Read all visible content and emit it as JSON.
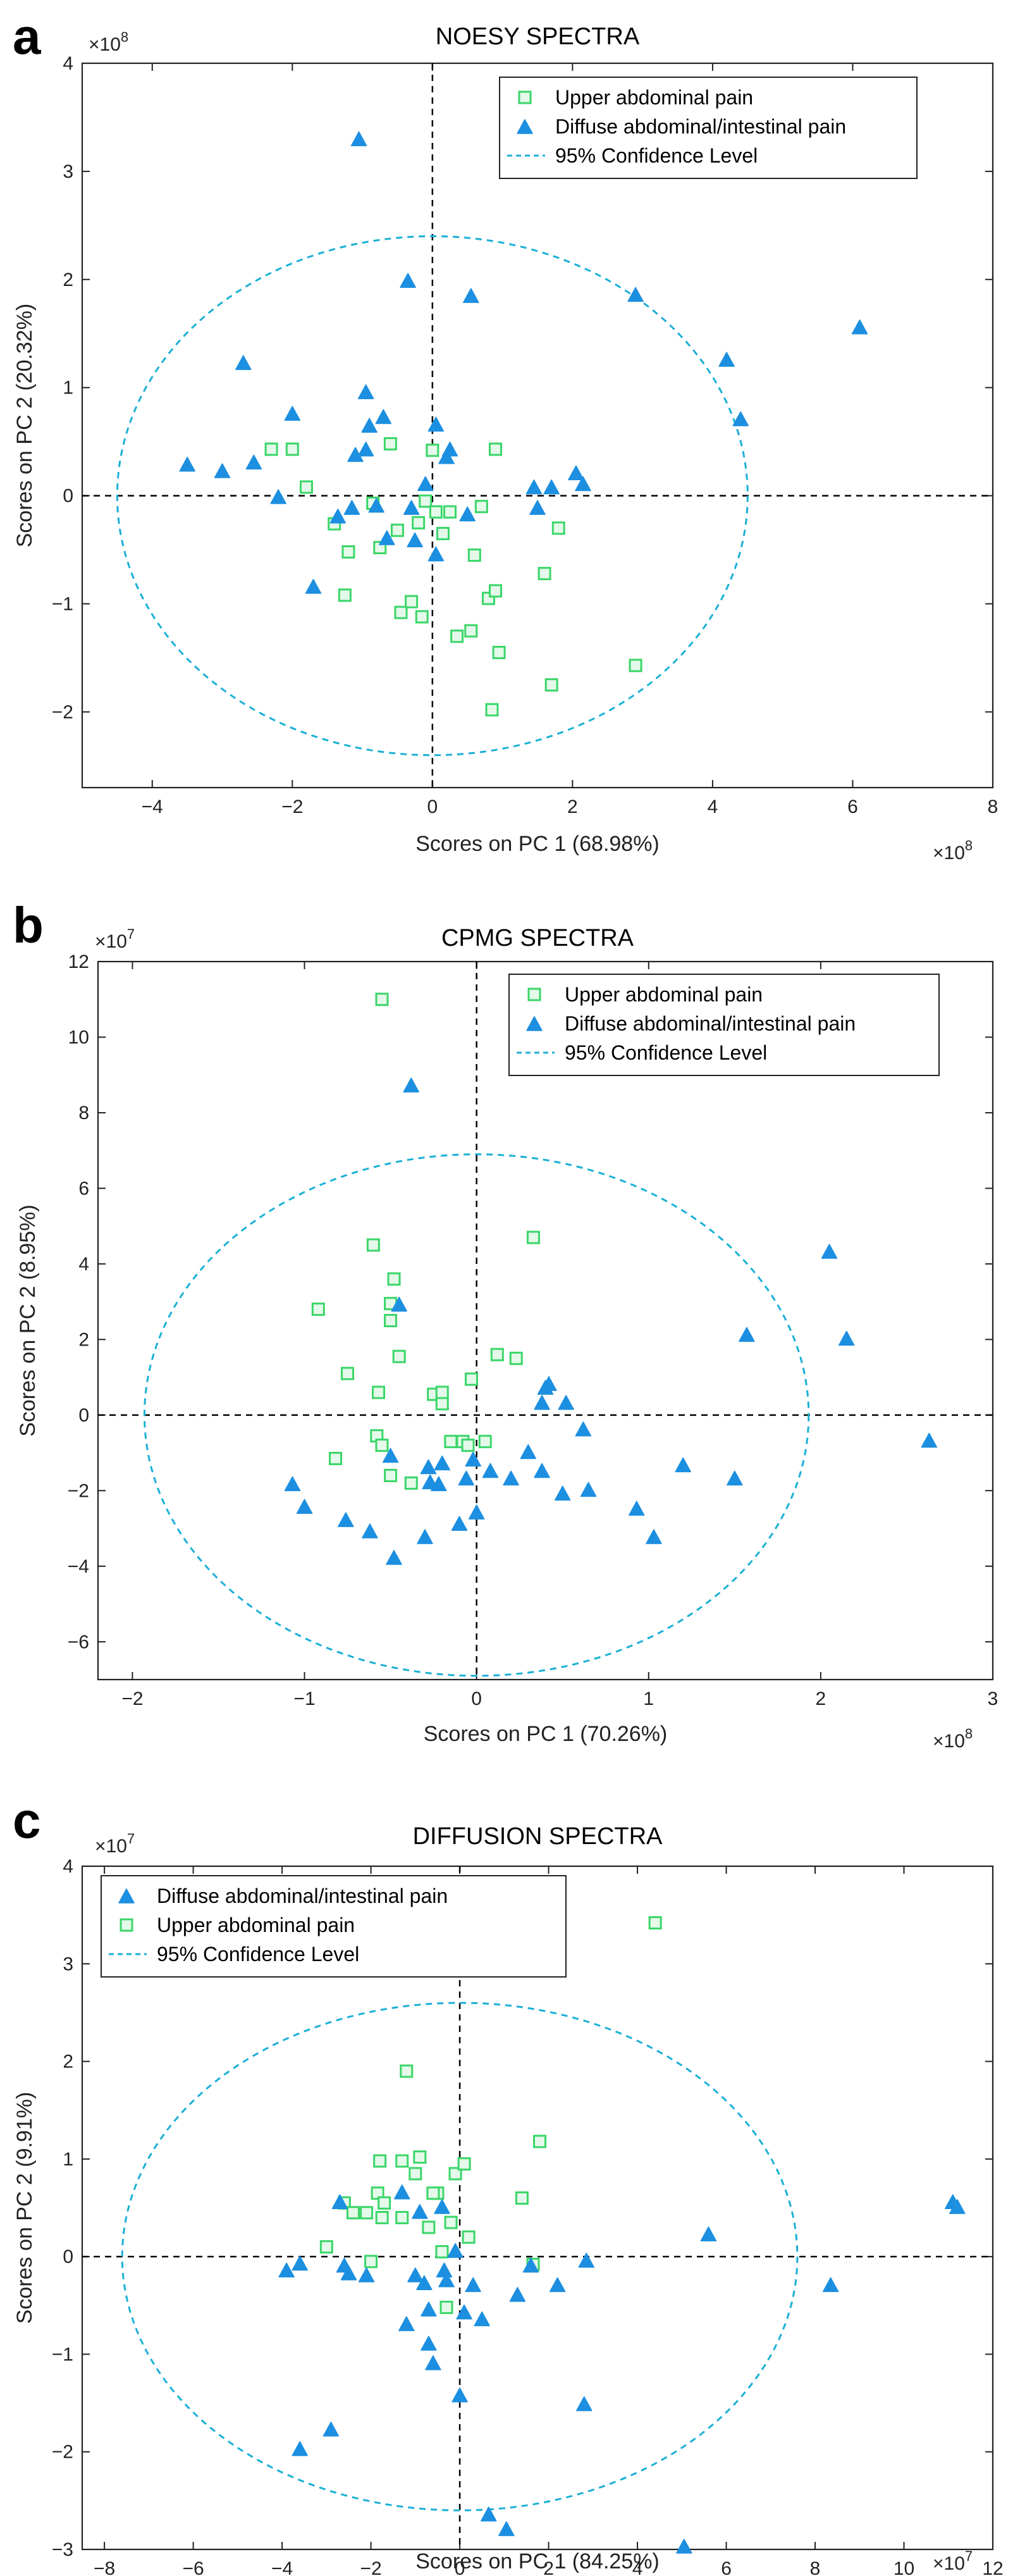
{
  "colors": {
    "upper": "#3ad668",
    "upper_fill": "#e4f9ea",
    "diffuse": "#1c8fe0",
    "ellipse": "#1ab0d6"
  },
  "icons": {
    "upper": "square-marker-icon",
    "diffuse": "triangle-marker-icon"
  },
  "chart_data": [
    {
      "panel": "a",
      "type": "scatter",
      "title": "NOESY SPECTRA",
      "xlabel": "Scores on PC 1 (68.98%)",
      "ylabel": "Scores on PC 2 (20.32%)",
      "x_multiplier": "×10^8",
      "y_multiplier": "×10^8",
      "xlim": [
        -5,
        8
      ],
      "ylim": [
        -2.7,
        4
      ],
      "xticks": [
        -4,
        -2,
        0,
        2,
        4,
        6,
        8
      ],
      "yticks": [
        -2,
        -1,
        0,
        1,
        2,
        3,
        4
      ],
      "legend": [
        {
          "series": "upper",
          "label": "Upper abdominal pain"
        },
        {
          "series": "diffuse",
          "label": "Diffuse abdominal/intestinal pain"
        },
        {
          "series": "ellipse",
          "label": "95% Confidence Level"
        }
      ],
      "ellipse": {
        "cx": 0,
        "cy": 0,
        "rx": 4.5,
        "ry": 2.4
      },
      "series": [
        {
          "name": "Upper abdominal pain",
          "key": "upper",
          "marker": "square",
          "points": [
            [
              -2.3,
              0.43
            ],
            [
              -2.0,
              0.43
            ],
            [
              -1.8,
              0.08
            ],
            [
              -1.4,
              -0.26
            ],
            [
              -1.25,
              -0.92
            ],
            [
              -1.2,
              -0.52
            ],
            [
              -0.85,
              -0.07
            ],
            [
              -0.75,
              -0.48
            ],
            [
              -0.6,
              0.48
            ],
            [
              -0.5,
              -0.32
            ],
            [
              -0.45,
              -1.08
            ],
            [
              -0.3,
              -0.98
            ],
            [
              -0.2,
              -0.25
            ],
            [
              -0.15,
              -1.12
            ],
            [
              -0.1,
              -0.05
            ],
            [
              0,
              0.42
            ],
            [
              0.05,
              -0.15
            ],
            [
              0.15,
              -0.35
            ],
            [
              0.25,
              -0.15
            ],
            [
              0.35,
              -1.3
            ],
            [
              0.55,
              -1.25
            ],
            [
              0.6,
              -0.55
            ],
            [
              0.7,
              -0.1
            ],
            [
              0.8,
              -0.95
            ],
            [
              0.9,
              -0.88
            ],
            [
              0.95,
              -1.45
            ],
            [
              0.85,
              -1.98
            ],
            [
              0.9,
              0.43
            ],
            [
              1.6,
              -0.72
            ],
            [
              1.8,
              -0.3
            ],
            [
              1.7,
              -1.75
            ],
            [
              2.9,
              -1.57
            ]
          ]
        },
        {
          "name": "Diffuse abdominal/intestinal pain",
          "key": "diffuse",
          "marker": "triangle",
          "points": [
            [
              -3.5,
              0.28
            ],
            [
              -3.0,
              0.22
            ],
            [
              -2.7,
              1.22
            ],
            [
              -2.55,
              0.3
            ],
            [
              -2.2,
              -0.02
            ],
            [
              -2.0,
              0.75
            ],
            [
              -1.7,
              -0.85
            ],
            [
              -1.35,
              -0.2
            ],
            [
              -1.15,
              -0.12
            ],
            [
              -1.1,
              0.37
            ],
            [
              -1.05,
              3.29
            ],
            [
              -0.95,
              0.95
            ],
            [
              -0.95,
              0.42
            ],
            [
              -0.9,
              0.64
            ],
            [
              -0.8,
              -0.1
            ],
            [
              -0.7,
              0.72
            ],
            [
              -0.65,
              -0.4
            ],
            [
              -0.35,
              1.98
            ],
            [
              -0.3,
              -0.12
            ],
            [
              -0.25,
              -0.42
            ],
            [
              -0.1,
              0.1
            ],
            [
              0.05,
              -0.55
            ],
            [
              0.05,
              0.65
            ],
            [
              0.2,
              0.35
            ],
            [
              0.25,
              0.42
            ],
            [
              0.5,
              -0.18
            ],
            [
              0.55,
              1.84
            ],
            [
              1.5,
              -0.12
            ],
            [
              1.45,
              0.07
            ],
            [
              1.7,
              0.07
            ],
            [
              2.05,
              0.2
            ],
            [
              2.15,
              0.1
            ],
            [
              2.9,
              1.85
            ],
            [
              4.2,
              1.25
            ],
            [
              4.4,
              0.7
            ],
            [
              6.1,
              1.55
            ]
          ]
        }
      ]
    },
    {
      "panel": "b",
      "type": "scatter",
      "title": "CPMG SPECTRA",
      "xlabel": "Scores on PC 1 (70.26%)",
      "ylabel": "Scores on PC 2 (8.95%)",
      "x_multiplier": "×10^8",
      "y_multiplier": "×10^7",
      "xlim": [
        -2.2,
        3
      ],
      "ylim": [
        -7,
        12
      ],
      "xticks": [
        -2,
        -1,
        0,
        1,
        2,
        3
      ],
      "yticks": [
        -6,
        -4,
        -2,
        0,
        2,
        4,
        6,
        8,
        10,
        12
      ],
      "legend": [
        {
          "series": "upper",
          "label": "Upper abdominal pain"
        },
        {
          "series": "diffuse",
          "label": "Diffuse abdominal/intestinal pain"
        },
        {
          "series": "ellipse",
          "label": "95% Confidence Level"
        }
      ],
      "ellipse": {
        "cx": 0,
        "cy": 0,
        "rx": 1.93,
        "ry": 6.9
      },
      "series": [
        {
          "name": "Upper abdominal pain",
          "key": "upper",
          "marker": "square",
          "points": [
            [
              -0.55,
              11.0
            ],
            [
              -0.92,
              2.8
            ],
            [
              -0.75,
              1.1
            ],
            [
              -0.82,
              -1.15
            ],
            [
              -0.6,
              4.5
            ],
            [
              -0.5,
              2.95
            ],
            [
              -0.48,
              3.6
            ],
            [
              -0.5,
              2.5
            ],
            [
              -0.45,
              1.55
            ],
            [
              -0.57,
              0.6
            ],
            [
              -0.58,
              -0.55
            ],
            [
              -0.55,
              -0.8
            ],
            [
              -0.5,
              -1.6
            ],
            [
              -0.38,
              -1.8
            ],
            [
              -0.25,
              0.55
            ],
            [
              -0.2,
              0.3
            ],
            [
              -0.2,
              0.6
            ],
            [
              -0.15,
              -0.7
            ],
            [
              -0.08,
              -0.7
            ],
            [
              -0.03,
              0.95
            ],
            [
              0.05,
              -0.7
            ],
            [
              0.12,
              1.6
            ],
            [
              0.23,
              1.5
            ],
            [
              0.33,
              4.7
            ],
            [
              -0.05,
              -0.8
            ]
          ]
        },
        {
          "name": "Diffuse abdominal/intestinal pain",
          "key": "diffuse",
          "marker": "triangle",
          "points": [
            [
              -0.38,
              8.7
            ],
            [
              -0.45,
              2.9
            ],
            [
              -1.07,
              -1.85
            ],
            [
              -1.0,
              -2.45
            ],
            [
              -0.76,
              -2.8
            ],
            [
              -0.62,
              -3.1
            ],
            [
              -0.48,
              -3.8
            ],
            [
              -0.5,
              -1.1
            ],
            [
              -0.3,
              -3.25
            ],
            [
              -0.28,
              -1.4
            ],
            [
              -0.27,
              -1.8
            ],
            [
              -0.22,
              -1.85
            ],
            [
              -0.2,
              -1.3
            ],
            [
              -0.1,
              -2.9
            ],
            [
              -0.06,
              -1.7
            ],
            [
              -0.02,
              -1.2
            ],
            [
              0.0,
              -2.6
            ],
            [
              0.08,
              -1.5
            ],
            [
              0.2,
              -1.7
            ],
            [
              0.3,
              -1.0
            ],
            [
              0.38,
              0.3
            ],
            [
              0.38,
              -1.5
            ],
            [
              0.4,
              0.7
            ],
            [
              0.42,
              0.8
            ],
            [
              0.52,
              0.3
            ],
            [
              0.5,
              -2.1
            ],
            [
              0.62,
              -0.4
            ],
            [
              0.65,
              -2.0
            ],
            [
              0.93,
              -2.5
            ],
            [
              1.03,
              -3.25
            ],
            [
              1.2,
              -1.35
            ],
            [
              1.5,
              -1.7
            ],
            [
              1.57,
              2.1
            ],
            [
              2.05,
              4.3
            ],
            [
              2.15,
              2.0
            ],
            [
              2.63,
              -0.7
            ]
          ]
        }
      ]
    },
    {
      "panel": "c",
      "type": "scatter",
      "title": "DIFFUSION SPECTRA",
      "xlabel": "Scores on PC 1 (84.25%)",
      "ylabel": "Scores on PC 2 (9.91%)",
      "x_multiplier": "×10^7",
      "y_multiplier": "×10^7",
      "xlim": [
        -8.5,
        12
      ],
      "ylim": [
        -3,
        4
      ],
      "xticks": [
        -8,
        -6,
        -4,
        -2,
        0,
        2,
        4,
        6,
        8,
        10,
        12
      ],
      "yticks": [
        -3,
        -2,
        -1,
        0,
        1,
        2,
        3,
        4
      ],
      "legend": [
        {
          "series": "diffuse",
          "label": "Diffuse abdominal/intestinal pain"
        },
        {
          "series": "upper",
          "label": "Upper abdominal pain"
        },
        {
          "series": "ellipse",
          "label": "95% Confidence Level"
        }
      ],
      "ellipse": {
        "cx": 0,
        "cy": 0,
        "rx": 7.6,
        "ry": 2.6
      },
      "series": [
        {
          "name": "Upper abdominal pain",
          "key": "upper",
          "marker": "square",
          "points": [
            [
              4.4,
              3.42
            ],
            [
              -1.2,
              1.9
            ],
            [
              1.8,
              1.18
            ],
            [
              -3.0,
              0.1
            ],
            [
              -2.6,
              0.55
            ],
            [
              -2.4,
              0.45
            ],
            [
              -2.1,
              0.45
            ],
            [
              -2.0,
              -0.05
            ],
            [
              -1.8,
              0.98
            ],
            [
              -1.85,
              0.65
            ],
            [
              -1.7,
              0.55
            ],
            [
              -1.75,
              0.4
            ],
            [
              -1.3,
              0.98
            ],
            [
              -1.3,
              0.4
            ],
            [
              -1.0,
              0.85
            ],
            [
              -0.9,
              1.02
            ],
            [
              -0.7,
              0.3
            ],
            [
              -0.5,
              0.65
            ],
            [
              -0.4,
              0.05
            ],
            [
              -0.3,
              -0.52
            ],
            [
              -0.2,
              0.35
            ],
            [
              -0.1,
              0.85
            ],
            [
              0.1,
              0.95
            ],
            [
              0.2,
              0.2
            ],
            [
              1.4,
              0.6
            ],
            [
              1.65,
              -0.08
            ],
            [
              -0.6,
              0.65
            ]
          ]
        },
        {
          "name": "Diffuse abdominal/intestinal pain",
          "key": "diffuse",
          "marker": "triangle",
          "points": [
            [
              -3.9,
              -0.15
            ],
            [
              -3.6,
              -0.08
            ],
            [
              -3.6,
              -1.98
            ],
            [
              -2.9,
              -1.78
            ],
            [
              -2.7,
              0.55
            ],
            [
              -2.6,
              -0.1
            ],
            [
              -2.5,
              -0.18
            ],
            [
              -2.1,
              -0.2
            ],
            [
              -1.3,
              0.65
            ],
            [
              -1.2,
              -0.7
            ],
            [
              -1.0,
              -0.2
            ],
            [
              -0.9,
              0.45
            ],
            [
              -0.8,
              -0.28
            ],
            [
              -0.7,
              -0.55
            ],
            [
              -0.7,
              -0.9
            ],
            [
              -0.6,
              -1.1
            ],
            [
              -0.4,
              0.5
            ],
            [
              -0.35,
              -0.15
            ],
            [
              -0.3,
              -0.25
            ],
            [
              -0.1,
              0.05
            ],
            [
              0.0,
              -1.43
            ],
            [
              0.1,
              -0.58
            ],
            [
              0.3,
              -0.3
            ],
            [
              0.5,
              -0.65
            ],
            [
              1.3,
              -0.4
            ],
            [
              1.6,
              -0.1
            ],
            [
              2.2,
              -0.3
            ],
            [
              2.85,
              -0.05
            ],
            [
              2.8,
              -1.52
            ],
            [
              0.65,
              -2.65
            ],
            [
              1.05,
              -2.8
            ],
            [
              5.05,
              -2.98
            ],
            [
              5.6,
              0.22
            ],
            [
              8.35,
              -0.3
            ],
            [
              11.1,
              0.55
            ],
            [
              11.2,
              0.5
            ]
          ]
        }
      ]
    }
  ]
}
